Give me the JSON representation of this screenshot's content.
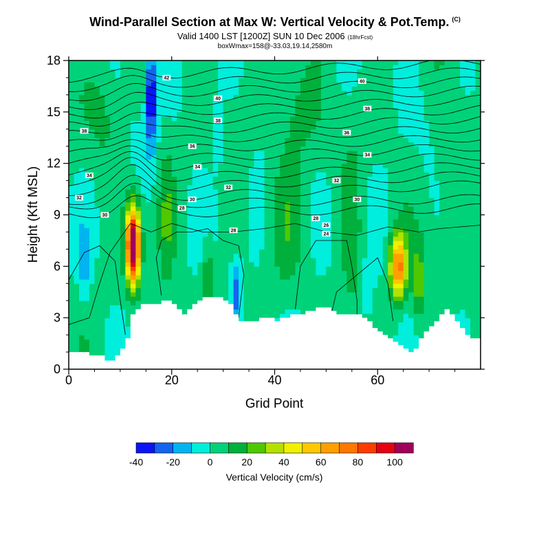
{
  "chart_data": {
    "type": "heatmap",
    "title": "Wind-Parallel Section at Max W: Vertical Velocity & Pot.Temp.",
    "title_mark": "(C)",
    "subtitle": "Valid 1400 LST [1200Z] SUN 10 Dec 2006",
    "subtitle_note": "(18hrFcst)",
    "subtitle2": "boxWmax=158@-33.03,19.14,2580m",
    "xlabel": "Grid Point",
    "ylabel": "Height (Kft MSL)",
    "xlim": [
      0,
      80
    ],
    "ylim": [
      0,
      18
    ],
    "x_ticks": [
      0,
      20,
      40,
      60
    ],
    "y_ticks": [
      0,
      3,
      6,
      9,
      12,
      15,
      18
    ],
    "colorbar": {
      "title": "Vertical Velocity (cm/s)",
      "levels": [
        -40,
        -30,
        -20,
        -10,
        0,
        10,
        20,
        30,
        40,
        50,
        60,
        70,
        80,
        90,
        100,
        110
      ],
      "tick_labels": [
        "-40",
        "-20",
        "0",
        "20",
        "40",
        "60",
        "80",
        "100"
      ],
      "colors": [
        "#0a14f5",
        "#1464f0",
        "#00b4f0",
        "#00eedc",
        "#00d27a",
        "#00b03c",
        "#50c800",
        "#b4e100",
        "#f0f000",
        "#ffc800",
        "#ffa000",
        "#ff7800",
        "#ff3c00",
        "#e60014",
        "#a0005a"
      ]
    },
    "terrain_kft": [
      1.0,
      1.0,
      1.0,
      1.0,
      0.8,
      0.8,
      0.8,
      0.5,
      0.5,
      0.8,
      1.2,
      1.8,
      3.2,
      3.5,
      3.8,
      3.8,
      3.8,
      3.8,
      4.0,
      4.0,
      3.8,
      3.5,
      3.2,
      3.5,
      3.8,
      4.0,
      4.2,
      4.2,
      4.2,
      4.2,
      4.0,
      3.8,
      3.2,
      2.8,
      2.8,
      2.8,
      2.8,
      3.0,
      3.0,
      3.0,
      2.8,
      3.0,
      3.0,
      3.2,
      3.2,
      3.2,
      3.4,
      3.4,
      3.6,
      3.6,
      3.6,
      3.4,
      3.2,
      3.2,
      3.2,
      3.2,
      3.2,
      3.0,
      2.8,
      2.4,
      2.2,
      2.0,
      1.8,
      1.6,
      1.4,
      1.2,
      1.0,
      1.2,
      1.8,
      2.2,
      2.5,
      2.8,
      3.2,
      3.5,
      3.2,
      2.8,
      2.4,
      2.0,
      1.8,
      1.8
    ],
    "theta_contours": [
      {
        "label": "24",
        "label_at": [
          50,
          7.9
        ]
      },
      {
        "label": "26",
        "label_at": [
          50,
          8.4
        ]
      },
      {
        "label": "28",
        "label_at": [
          32,
          8.1
        ]
      },
      {
        "label": "28",
        "label_at": [
          48,
          8.8
        ]
      },
      {
        "label": "28",
        "label_at": [
          22,
          9.4
        ]
      },
      {
        "label": "30",
        "label_at": [
          7,
          9.0
        ]
      },
      {
        "label": "30",
        "label_at": [
          24,
          9.9
        ]
      },
      {
        "label": "30",
        "label_at": [
          56,
          9.9
        ]
      },
      {
        "label": "32",
        "label_at": [
          2,
          10.0
        ]
      },
      {
        "label": "32",
        "label_at": [
          31,
          10.6
        ]
      },
      {
        "label": "32",
        "label_at": [
          52,
          11.0
        ]
      },
      {
        "label": "34",
        "label_at": [
          4,
          11.3
        ]
      },
      {
        "label": "34",
        "label_at": [
          25,
          11.8
        ]
      },
      {
        "label": "34",
        "label_at": [
          58,
          12.5
        ]
      },
      {
        "label": "36",
        "label_at": [
          24,
          13.0
        ]
      },
      {
        "label": "36",
        "label_at": [
          54,
          13.8
        ]
      },
      {
        "label": "38",
        "label_at": [
          3,
          13.9
        ]
      },
      {
        "label": "38",
        "label_at": [
          29,
          14.5
        ]
      },
      {
        "label": "38",
        "label_at": [
          58,
          15.2
        ]
      },
      {
        "label": "40",
        "label_at": [
          29,
          15.8
        ]
      },
      {
        "label": "40",
        "label_at": [
          57,
          16.8
        ]
      },
      {
        "label": "42",
        "label_at": [
          19,
          17.0
        ]
      }
    ]
  }
}
